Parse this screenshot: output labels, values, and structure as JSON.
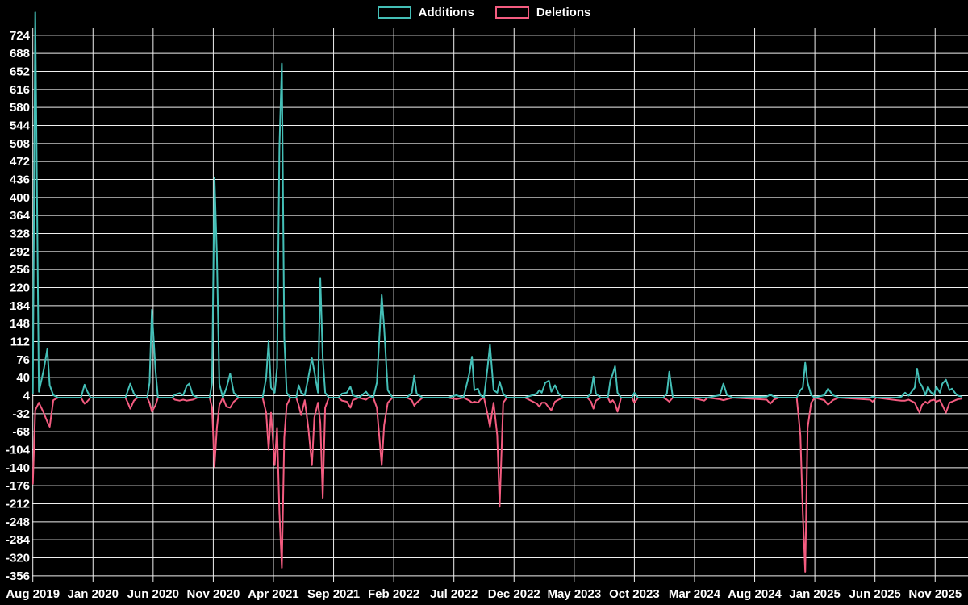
{
  "window": {
    "background": "#000000",
    "text_color": "#ffffff",
    "grid_color": "#f0f0f0"
  },
  "legend": {
    "items": [
      {
        "label": "Additions",
        "color": "#44bfb7"
      },
      {
        "label": "Deletions",
        "color": "#f45c80"
      }
    ]
  },
  "chart_data": {
    "type": "line",
    "title": "",
    "xlabel": "",
    "ylabel": "",
    "grid": true,
    "legend_position": "top-center",
    "x_axis": {
      "unit": "months since Aug 2019",
      "tick_labels": [
        "Aug 2019",
        "Jan 2020",
        "Jun 2020",
        "Nov 2020",
        "Apr 2021",
        "Sep 2021",
        "Feb 2022",
        "Jul 2022",
        "Dec 2022",
        "May 2023",
        "Oct 2023",
        "Mar 2024",
        "Aug 2024",
        "Jan 2025",
        "Jun 2025",
        "Nov 2025"
      ],
      "tick_positions_months": [
        0,
        5,
        10,
        15,
        20,
        25,
        30,
        35,
        40,
        45,
        50,
        55,
        60,
        65,
        70,
        75
      ]
    },
    "y_axis": {
      "min": -356,
      "max": 724,
      "step": 36,
      "ticks": [
        724,
        688,
        652,
        616,
        580,
        544,
        508,
        472,
        436,
        400,
        364,
        328,
        292,
        256,
        220,
        184,
        148,
        112,
        76,
        40,
        4,
        -32,
        -68,
        -104,
        -140,
        -176,
        -212,
        -248,
        -284,
        -320,
        -356
      ]
    },
    "series_meta": [
      {
        "name": "Additions",
        "color": "#44bfb7"
      },
      {
        "name": "Deletions",
        "color": "#f45c80"
      }
    ],
    "columns": [
      "month_offset",
      "additions",
      "deletions"
    ],
    "points": [
      [
        0,
        8,
        -172
      ],
      [
        0.2,
        770,
        -25
      ],
      [
        0.5,
        12,
        -10
      ],
      [
        0.9,
        55,
        -30
      ],
      [
        1.2,
        97,
        -48
      ],
      [
        1.4,
        25,
        -58
      ],
      [
        1.7,
        5,
        -5
      ],
      [
        2.1,
        0,
        0
      ],
      [
        4,
        0,
        0
      ],
      [
        4.3,
        26,
        -12
      ],
      [
        4.5,
        14,
        -8
      ],
      [
        4.8,
        0,
        0
      ],
      [
        6.7,
        0,
        0
      ],
      [
        7.7,
        0,
        0
      ],
      [
        7.9,
        14,
        -10
      ],
      [
        8.1,
        28,
        -22
      ],
      [
        8.4,
        8,
        -6
      ],
      [
        8.7,
        0,
        0
      ],
      [
        9.5,
        0,
        0
      ],
      [
        9.7,
        30,
        -10
      ],
      [
        9.9,
        176,
        -28
      ],
      [
        10.2,
        55,
        -15
      ],
      [
        10.4,
        0,
        0
      ],
      [
        11.6,
        0,
        0
      ],
      [
        11.8,
        6,
        -4
      ],
      [
        12.2,
        9,
        -6
      ],
      [
        12.5,
        5,
        -4
      ],
      [
        12.8,
        24,
        -6
      ],
      [
        13,
        28,
        -5
      ],
      [
        13.3,
        5,
        -4
      ],
      [
        13.7,
        0,
        0
      ],
      [
        14.7,
        0,
        0
      ],
      [
        14.9,
        30,
        -20
      ],
      [
        15.1,
        440,
        -138
      ],
      [
        15.3,
        285,
        -60
      ],
      [
        15.5,
        28,
        -15
      ],
      [
        15.8,
        0,
        0
      ],
      [
        16.1,
        20,
        -18
      ],
      [
        16.4,
        48,
        -20
      ],
      [
        16.7,
        10,
        -8
      ],
      [
        17.1,
        0,
        0
      ],
      [
        19.1,
        0,
        0
      ],
      [
        19.4,
        40,
        -30
      ],
      [
        19.6,
        113,
        -104
      ],
      [
        19.8,
        20,
        -30
      ],
      [
        20.1,
        10,
        -135
      ],
      [
        20.3,
        60,
        -60
      ],
      [
        20.5,
        500,
        -230
      ],
      [
        20.7,
        668,
        -340
      ],
      [
        20.9,
        120,
        -80
      ],
      [
        21.1,
        10,
        -15
      ],
      [
        21.4,
        0,
        0
      ],
      [
        21.9,
        0,
        0
      ],
      [
        22.1,
        25,
        -15
      ],
      [
        22.3,
        10,
        -35
      ],
      [
        22.6,
        5,
        -5
      ],
      [
        22.9,
        40,
        -60
      ],
      [
        23.2,
        79,
        -135
      ],
      [
        23.4,
        52,
        -40
      ],
      [
        23.7,
        10,
        -10
      ],
      [
        23.9,
        238,
        -50
      ],
      [
        24.1,
        80,
        -200
      ],
      [
        24.3,
        10,
        -20
      ],
      [
        24.6,
        0,
        0
      ],
      [
        25.4,
        0,
        0
      ],
      [
        25.7,
        8,
        -6
      ],
      [
        26.1,
        10,
        -8
      ],
      [
        26.4,
        22,
        -20
      ],
      [
        26.6,
        5,
        -5
      ],
      [
        27.1,
        0,
        0
      ],
      [
        27.7,
        12,
        -4
      ],
      [
        27.9,
        5,
        0
      ],
      [
        28.3,
        0,
        0
      ],
      [
        28.6,
        30,
        -20
      ],
      [
        29,
        205,
        -135
      ],
      [
        29.2,
        140,
        -55
      ],
      [
        29.5,
        15,
        -10
      ],
      [
        29.9,
        0,
        0
      ],
      [
        31.1,
        0,
        0
      ],
      [
        31.5,
        10,
        -5
      ],
      [
        31.7,
        44,
        -16
      ],
      [
        31.9,
        8,
        -10
      ],
      [
        32.4,
        0,
        0
      ],
      [
        34.5,
        0,
        0
      ],
      [
        35.2,
        5,
        -3
      ],
      [
        35.8,
        0,
        0
      ],
      [
        36.3,
        50,
        -6
      ],
      [
        36.5,
        82,
        -10
      ],
      [
        36.7,
        15,
        -8
      ],
      [
        37,
        18,
        -10
      ],
      [
        37.2,
        5,
        -4
      ],
      [
        37.5,
        0,
        0
      ],
      [
        37.8,
        60,
        -33
      ],
      [
        38,
        106,
        -58
      ],
      [
        38.3,
        15,
        -10
      ],
      [
        38.6,
        10,
        -75
      ],
      [
        38.8,
        32,
        -218
      ],
      [
        39.1,
        8,
        -10
      ],
      [
        39.4,
        0,
        0
      ],
      [
        40.9,
        0,
        0
      ],
      [
        41.9,
        8,
        -12
      ],
      [
        42.1,
        15,
        -18
      ],
      [
        42.3,
        10,
        -10
      ],
      [
        42.6,
        30,
        -10
      ],
      [
        42.9,
        34,
        -20
      ],
      [
        43.1,
        12,
        -25
      ],
      [
        43.4,
        25,
        -8
      ],
      [
        43.7,
        8,
        -4
      ],
      [
        44.1,
        0,
        0
      ],
      [
        46.1,
        0,
        0
      ],
      [
        46.4,
        10,
        -8
      ],
      [
        46.6,
        42,
        -22
      ],
      [
        46.8,
        8,
        -6
      ],
      [
        47.2,
        0,
        0
      ],
      [
        47.8,
        0,
        0
      ],
      [
        48,
        34,
        -10
      ],
      [
        48.2,
        47,
        -5
      ],
      [
        48.4,
        63,
        -12
      ],
      [
        48.6,
        10,
        -28
      ],
      [
        48.9,
        0,
        0
      ],
      [
        49.8,
        0,
        0
      ],
      [
        50,
        10,
        -10
      ],
      [
        50.3,
        0,
        0
      ],
      [
        52.4,
        0,
        0
      ],
      [
        52.7,
        8,
        -4
      ],
      [
        52.9,
        52,
        -8
      ],
      [
        53.2,
        0,
        0
      ],
      [
        54.8,
        0,
        0
      ],
      [
        55.8,
        0,
        -6
      ],
      [
        56.1,
        0,
        0
      ],
      [
        57.1,
        5,
        -3
      ],
      [
        57.4,
        28,
        -5
      ],
      [
        57.7,
        5,
        -3
      ],
      [
        58.2,
        0,
        0
      ],
      [
        61,
        2,
        -4
      ],
      [
        61.3,
        6,
        -12
      ],
      [
        61.6,
        2,
        -4
      ],
      [
        62,
        0,
        0
      ],
      [
        63.5,
        0,
        0
      ],
      [
        63.8,
        15,
        -75
      ],
      [
        64,
        20,
        -230
      ],
      [
        64.2,
        70,
        -348
      ],
      [
        64.4,
        30,
        -60
      ],
      [
        64.7,
        5,
        -10
      ],
      [
        65,
        0,
        0
      ],
      [
        65.8,
        5,
        -5
      ],
      [
        66.1,
        18,
        -14
      ],
      [
        66.5,
        5,
        -5
      ],
      [
        67,
        0,
        0
      ],
      [
        69.6,
        0,
        -4
      ],
      [
        69.8,
        2,
        -8
      ],
      [
        70.1,
        0,
        0
      ],
      [
        71.8,
        0,
        -5
      ],
      [
        72.2,
        2,
        -6
      ],
      [
        72.5,
        10,
        -6
      ],
      [
        72.8,
        4,
        -4
      ],
      [
        73.3,
        20,
        -10
      ],
      [
        73.5,
        58,
        -20
      ],
      [
        73.7,
        30,
        -30
      ],
      [
        73.9,
        24,
        -15
      ],
      [
        74.2,
        5,
        -8
      ],
      [
        74.4,
        22,
        -12
      ],
      [
        74.6,
        12,
        -6
      ],
      [
        74.9,
        5,
        -4
      ],
      [
        75.1,
        22,
        -8
      ],
      [
        75.4,
        10,
        -5
      ],
      [
        75.6,
        28,
        -15
      ],
      [
        75.9,
        36,
        -30
      ],
      [
        76.2,
        15,
        -10
      ],
      [
        76.4,
        18,
        -8
      ],
      [
        76.7,
        8,
        -5
      ],
      [
        76.9,
        4,
        -3
      ],
      [
        77.2,
        2,
        -2
      ]
    ]
  }
}
